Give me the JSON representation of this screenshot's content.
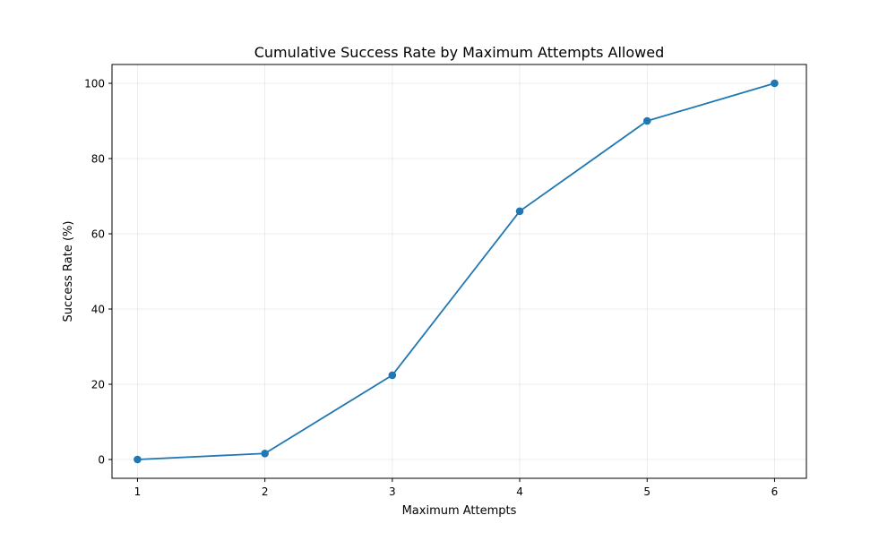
{
  "chart_data": {
    "type": "line",
    "title": "Cumulative Success Rate by Maximum Attempts Allowed",
    "xlabel": "Maximum Attempts",
    "ylabel": "Success Rate (%)",
    "x": [
      1,
      2,
      3,
      4,
      5,
      6
    ],
    "series": [
      {
        "values": [
          0,
          1.6,
          22.4,
          66.0,
          90.0,
          100.0
        ],
        "color": "#1f77b4",
        "marker": "circle"
      }
    ],
    "xlim": [
      0.8,
      6.25
    ],
    "ylim": [
      -5,
      105
    ],
    "xticks": [
      1,
      2,
      3,
      4,
      5,
      6
    ],
    "yticks": [
      0,
      20,
      40,
      60,
      80,
      100
    ],
    "grid": true
  }
}
